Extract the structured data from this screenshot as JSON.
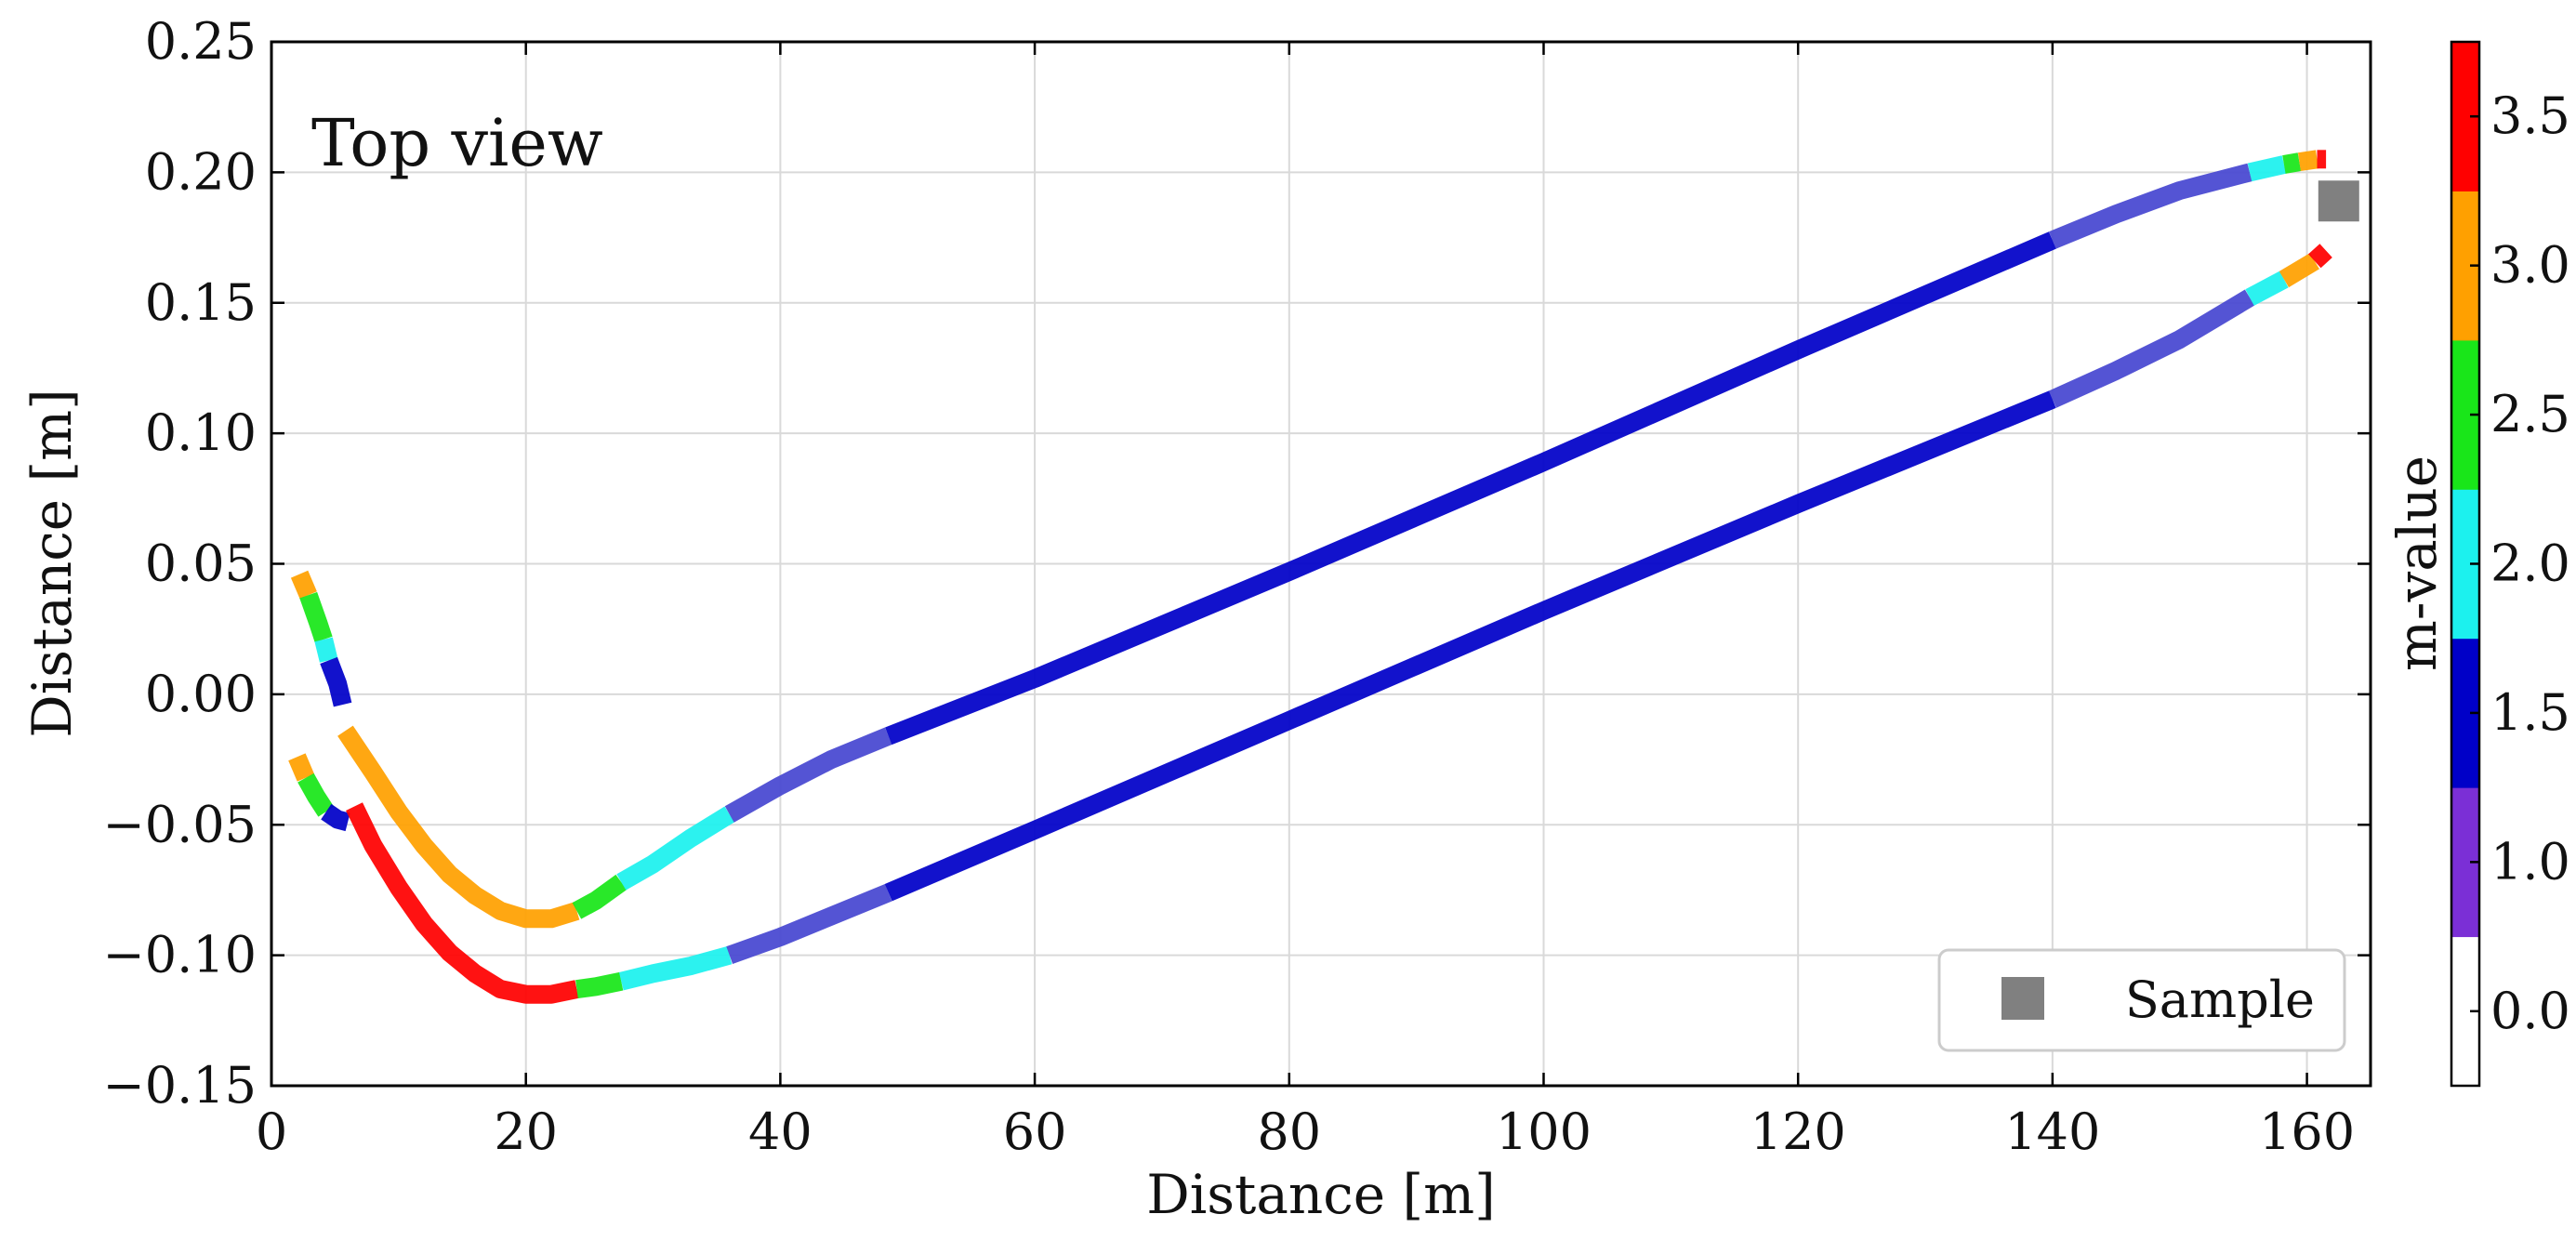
{
  "chart_data": {
    "type": "line",
    "annotation": "Top view",
    "xlabel": "Distance [m]",
    "ylabel": "Distance [m]",
    "xlim": [
      0,
      165
    ],
    "ylim": [
      -0.15,
      0.25
    ],
    "xticks": [
      0,
      20,
      40,
      60,
      80,
      100,
      120,
      140,
      160
    ],
    "yticks": [
      -0.15,
      -0.1,
      -0.05,
      0.0,
      0.05,
      0.1,
      0.15,
      0.2,
      0.25
    ],
    "xtick_labels": [
      "0",
      "20",
      "40",
      "60",
      "80",
      "100",
      "120",
      "140",
      "160"
    ],
    "ytick_labels": [
      "−0.15",
      "−0.10",
      "−0.05",
      "0.00",
      "0.05",
      "0.10",
      "0.15",
      "0.20",
      "0.25"
    ],
    "grid": true,
    "colorbar": {
      "label": "m-value",
      "tick_values": [
        0.0,
        1.0,
        1.5,
        2.0,
        2.5,
        3.0,
        3.5
      ],
      "tick_labels": [
        "0.0",
        "1.0",
        "1.5",
        "2.0",
        "2.5",
        "3.0",
        "3.5"
      ],
      "bins": [
        {
          "color": "#ffffff"
        },
        {
          "color": "#7b2fd6"
        },
        {
          "color": "#0000c8"
        },
        {
          "color": "#1cf1ee"
        },
        {
          "color": "#19e619"
        },
        {
          "color": "#ffa000"
        },
        {
          "color": "#ff0000"
        }
      ]
    },
    "legend": {
      "position": "lower-right",
      "entries": [
        {
          "label": "Sample",
          "marker": "square",
          "color": "#808080"
        }
      ]
    },
    "sample_marker": {
      "x": 162.5,
      "y": 0.189,
      "color": "#808080"
    },
    "series": [
      {
        "segments": [
          {
            "color": "#ffa000",
            "points": [
              [
                2.2,
                0.046
              ],
              [
                2.9,
                0.038
              ]
            ]
          },
          {
            "color": "#19e619",
            "points": [
              [
                2.9,
                0.038
              ],
              [
                3.7,
                0.027
              ],
              [
                4.1,
                0.021
              ]
            ]
          },
          {
            "color": "#1cf1ee",
            "points": [
              [
                4.1,
                0.021
              ],
              [
                4.5,
                0.013
              ]
            ]
          },
          {
            "color": "#0000c8",
            "points": [
              [
                4.5,
                0.013
              ],
              [
                5.2,
                0.004
              ],
              [
                5.6,
                -0.004
              ]
            ]
          }
        ]
      },
      {
        "segments": [
          {
            "color": "#ffa000",
            "points": [
              [
                5.8,
                -0.014
              ],
              [
                8,
                -0.03
              ],
              [
                10,
                -0.045
              ],
              [
                12,
                -0.058
              ],
              [
                14,
                -0.069
              ],
              [
                16,
                -0.077
              ],
              [
                18,
                -0.083
              ],
              [
                20,
                -0.086
              ],
              [
                22,
                -0.086
              ],
              [
                24,
                -0.083
              ]
            ]
          },
          {
            "color": "#19e619",
            "points": [
              [
                24,
                -0.083
              ],
              [
                25.5,
                -0.079
              ],
              [
                27.5,
                -0.072
              ]
            ]
          },
          {
            "color": "#1cf1ee",
            "points": [
              [
                27.5,
                -0.072
              ],
              [
                30,
                -0.065
              ],
              [
                33,
                -0.055
              ],
              [
                36,
                -0.046
              ]
            ]
          },
          {
            "color": "#4747d1",
            "points": [
              [
                36,
                -0.046
              ],
              [
                40,
                -0.035
              ],
              [
                44,
                -0.025
              ],
              [
                48.5,
                -0.016
              ]
            ]
          },
          {
            "color": "#0000c8",
            "points": [
              [
                48.5,
                -0.016
              ],
              [
                60,
                0.006
              ],
              [
                80,
                0.047
              ],
              [
                100,
                0.089
              ],
              [
                120,
                0.132
              ],
              [
                140,
                0.174
              ]
            ]
          },
          {
            "color": "#4747d1",
            "points": [
              [
                140,
                0.174
              ],
              [
                145,
                0.184
              ],
              [
                150,
                0.193
              ],
              [
                155.5,
                0.2
              ]
            ]
          },
          {
            "color": "#1cf1ee",
            "points": [
              [
                155.5,
                0.2
              ],
              [
                158.2,
                0.203
              ]
            ]
          },
          {
            "color": "#19e619",
            "points": [
              [
                158.2,
                0.203
              ],
              [
                159.4,
                0.204
              ]
            ]
          },
          {
            "color": "#ffa000",
            "points": [
              [
                159.4,
                0.204
              ],
              [
                160.8,
                0.205
              ]
            ]
          },
          {
            "color": "#ff0000",
            "points": [
              [
                160.8,
                0.205
              ],
              [
                161.5,
                0.205
              ]
            ]
          }
        ]
      },
      {
        "segments": [
          {
            "color": "#ffa000",
            "points": [
              [
                2.0,
                -0.024
              ],
              [
                2.7,
                -0.032
              ]
            ]
          },
          {
            "color": "#19e619",
            "points": [
              [
                2.7,
                -0.032
              ],
              [
                3.5,
                -0.039
              ],
              [
                4.3,
                -0.045
              ]
            ]
          },
          {
            "color": "#0000c8",
            "points": [
              [
                4.3,
                -0.045
              ],
              [
                5.2,
                -0.048
              ],
              [
                6.0,
                -0.049
              ]
            ]
          }
        ]
      },
      {
        "segments": [
          {
            "color": "#ff0000",
            "points": [
              [
                6.5,
                -0.043
              ],
              [
                8,
                -0.058
              ],
              [
                10,
                -0.074
              ],
              [
                12,
                -0.088
              ],
              [
                14,
                -0.099
              ],
              [
                16,
                -0.107
              ],
              [
                18,
                -0.113
              ],
              [
                20,
                -0.115
              ],
              [
                22,
                -0.115
              ],
              [
                24,
                -0.113
              ]
            ]
          },
          {
            "color": "#19e619",
            "points": [
              [
                24,
                -0.113
              ],
              [
                25.5,
                -0.112
              ],
              [
                27.5,
                -0.11
              ]
            ]
          },
          {
            "color": "#1cf1ee",
            "points": [
              [
                27.5,
                -0.11
              ],
              [
                30,
                -0.107
              ],
              [
                33,
                -0.104
              ],
              [
                36,
                -0.1
              ]
            ]
          },
          {
            "color": "#4747d1",
            "points": [
              [
                36,
                -0.1
              ],
              [
                40,
                -0.093
              ],
              [
                44,
                -0.085
              ],
              [
                48.5,
                -0.076
              ]
            ]
          },
          {
            "color": "#0000c8",
            "points": [
              [
                48.5,
                -0.076
              ],
              [
                60,
                -0.052
              ],
              [
                80,
                -0.01
              ],
              [
                100,
                0.032
              ],
              [
                120,
                0.073
              ],
              [
                140,
                0.113
              ]
            ]
          },
          {
            "color": "#4747d1",
            "points": [
              [
                140,
                0.113
              ],
              [
                145,
                0.124
              ],
              [
                150,
                0.136
              ],
              [
                155.5,
                0.152
              ]
            ]
          },
          {
            "color": "#1cf1ee",
            "points": [
              [
                155.5,
                0.152
              ],
              [
                158.2,
                0.159
              ]
            ]
          },
          {
            "color": "#ffa000",
            "points": [
              [
                158.2,
                0.159
              ],
              [
                160.6,
                0.166
              ]
            ]
          },
          {
            "color": "#ff0000",
            "points": [
              [
                160.6,
                0.166
              ],
              [
                161.5,
                0.17
              ]
            ]
          }
        ]
      }
    ]
  }
}
